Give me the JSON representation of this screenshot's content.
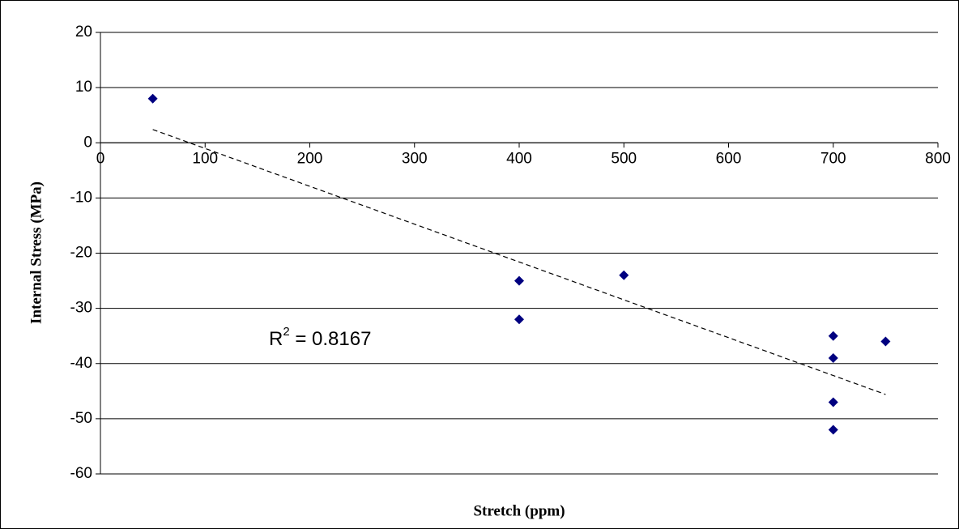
{
  "chart_data": {
    "type": "scatter",
    "x_label": "Stretch (ppm)",
    "y_label": "Internal Stress (MPa)",
    "x": [
      50,
      400,
      400,
      500,
      700,
      700,
      700,
      700,
      750
    ],
    "values": [
      8,
      -25,
      -32,
      -24,
      -35,
      -39,
      -47,
      -52,
      -36
    ],
    "color": "#000080",
    "xlim": [
      0,
      800
    ],
    "xticks": [
      0,
      100,
      200,
      300,
      400,
      500,
      600,
      700,
      800
    ],
    "ylim": [
      -60,
      20
    ],
    "yticks": [
      -60,
      -50,
      -40,
      -30,
      -20,
      -10,
      0,
      10,
      20
    ],
    "grid": true,
    "trendline": {
      "x": [
        50,
        750
      ],
      "values": [
        2.4,
        -45.6
      ],
      "style": "dashed"
    },
    "annotation": {
      "base": "R",
      "superscript": "2",
      "text": " = 0.8167"
    }
  }
}
